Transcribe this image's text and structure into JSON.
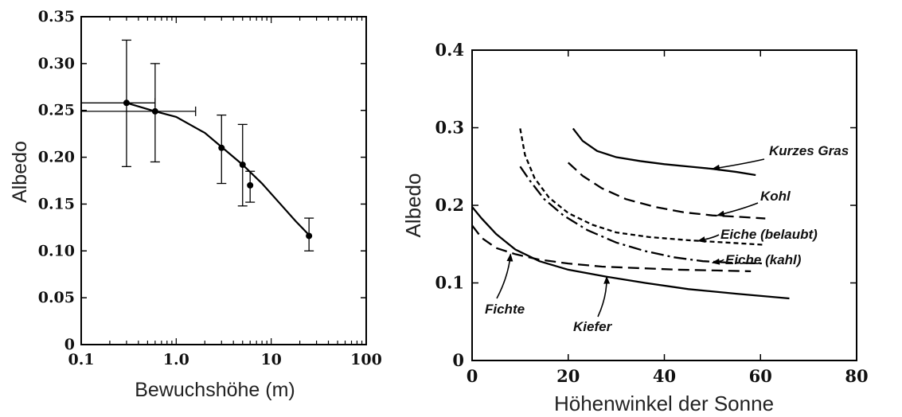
{
  "chart_data": [
    {
      "type": "scatter",
      "xscale": "log",
      "xlabel": "Bewuchshöhe (m)",
      "ylabel": "Albedo",
      "xlim": [
        0.1,
        100
      ],
      "ylim": [
        0,
        0.35
      ],
      "xticks": [
        "0.1",
        "1.0",
        "10",
        "100"
      ],
      "yticks": [
        "0",
        "0.05",
        "0.10",
        "0.15",
        "0.20",
        "0.25",
        "0.30",
        "0.35"
      ],
      "points": [
        {
          "x": 0.3,
          "y": 0.258,
          "ylo": 0.19,
          "yhi": 0.325,
          "xlo": 0.1,
          "xhi": 0.6
        },
        {
          "x": 0.6,
          "y": 0.249,
          "ylo": 0.195,
          "yhi": 0.3,
          "xlo": 0.1,
          "xhi": 1.6
        },
        {
          "x": 3.0,
          "y": 0.21,
          "ylo": 0.172,
          "yhi": 0.245
        },
        {
          "x": 5.0,
          "y": 0.192,
          "ylo": 0.148,
          "yhi": 0.235
        },
        {
          "x": 6.0,
          "y": 0.17,
          "ylo": 0.152,
          "yhi": 0.185
        },
        {
          "x": 25.0,
          "y": 0.116,
          "ylo": 0.1,
          "yhi": 0.135
        }
      ],
      "fit": {
        "x": [
          0.3,
          0.6,
          1.0,
          2.0,
          3.0,
          5.0,
          8.0,
          12.0,
          18.0,
          25.0
        ],
        "y": [
          0.258,
          0.249,
          0.243,
          0.226,
          0.211,
          0.192,
          0.172,
          0.152,
          0.132,
          0.117
        ]
      }
    },
    {
      "type": "line",
      "xlabel": "Höhenwinkel der Sonne",
      "ylabel": "Albedo",
      "xlim": [
        0,
        80
      ],
      "ylim": [
        0,
        0.4
      ],
      "xticks": [
        "0",
        "20",
        "40",
        "60",
        "80"
      ],
      "yticks": [
        "0",
        "0.1",
        "0.2",
        "0.3",
        "0.4"
      ],
      "series": [
        {
          "name": "Kurzes Gras",
          "style": "solid",
          "x": [
            21,
            23,
            26,
            30,
            35,
            40,
            45,
            50,
            55,
            59
          ],
          "y": [
            0.299,
            0.283,
            0.27,
            0.262,
            0.257,
            0.253,
            0.25,
            0.247,
            0.243,
            0.239
          ]
        },
        {
          "name": "Kohl",
          "style": "dash",
          "x": [
            20,
            23,
            27,
            32,
            38,
            44,
            50,
            56,
            61
          ],
          "y": [
            0.255,
            0.238,
            0.222,
            0.208,
            0.198,
            0.191,
            0.187,
            0.185,
            0.183
          ]
        },
        {
          "name": "Eiche (belaubt)",
          "style": "shortdash",
          "x": [
            10,
            11,
            13,
            16,
            20,
            25,
            30,
            37,
            45,
            53,
            61
          ],
          "y": [
            0.299,
            0.265,
            0.235,
            0.21,
            0.19,
            0.175,
            0.165,
            0.159,
            0.155,
            0.152,
            0.149
          ]
        },
        {
          "name": "Eiche (kahl)",
          "style": "dashdot",
          "x": [
            10,
            12,
            15,
            19,
            24,
            30,
            36,
            42,
            48,
            54,
            61
          ],
          "y": [
            0.25,
            0.232,
            0.208,
            0.187,
            0.168,
            0.152,
            0.141,
            0.133,
            0.128,
            0.126,
            0.125
          ]
        },
        {
          "name": "Fichte",
          "style": "dash",
          "x": [
            0,
            2,
            5,
            9,
            14,
            20,
            27,
            35,
            43,
            51,
            58
          ],
          "y": [
            0.174,
            0.158,
            0.145,
            0.137,
            0.13,
            0.125,
            0.121,
            0.119,
            0.117,
            0.116,
            0.115
          ]
        },
        {
          "name": "Kiefer",
          "style": "solid",
          "x": [
            0,
            2,
            5,
            9,
            14,
            20,
            28,
            36,
            45,
            55,
            66
          ],
          "y": [
            0.198,
            0.183,
            0.163,
            0.143,
            0.128,
            0.117,
            0.108,
            0.1,
            0.092,
            0.086,
            0.08
          ]
        }
      ]
    }
  ]
}
